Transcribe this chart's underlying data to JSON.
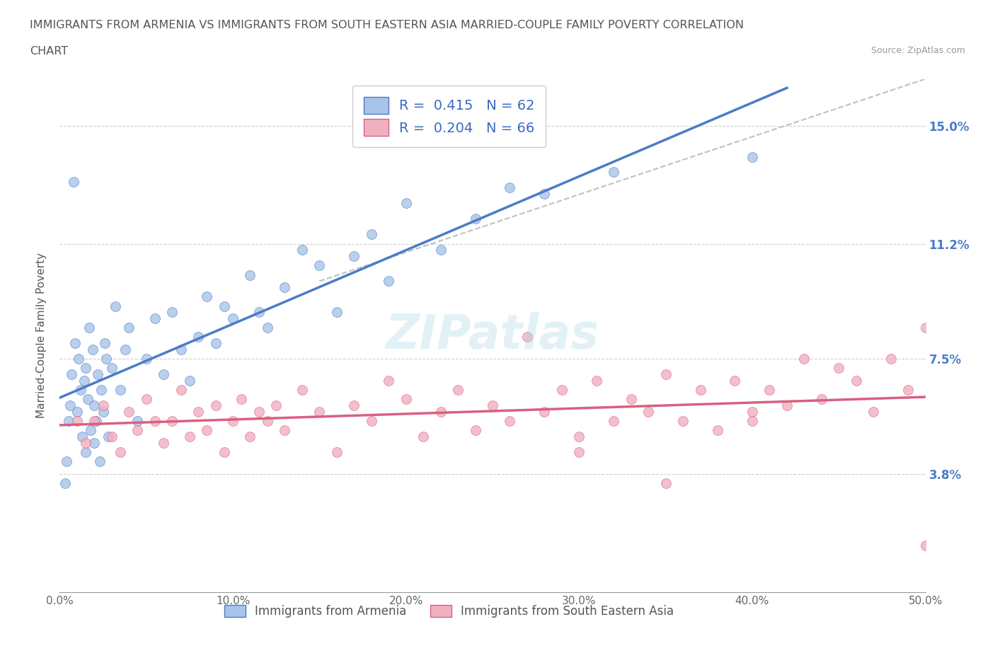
{
  "title_line1": "IMMIGRANTS FROM ARMENIA VS IMMIGRANTS FROM SOUTH EASTERN ASIA MARRIED-COUPLE FAMILY POVERTY CORRELATION",
  "title_line2": "CHART",
  "source": "Source: ZipAtlas.com",
  "ylabel": "Married-Couple Family Poverty",
  "xlim": [
    0.0,
    50.0
  ],
  "ylim": [
    0.0,
    16.5
  ],
  "yticks": [
    3.8,
    7.5,
    11.2,
    15.0
  ],
  "xticks": [
    0.0,
    10.0,
    20.0,
    30.0,
    40.0,
    50.0
  ],
  "color_armenia": "#a8c4e8",
  "color_sea": "#f0b0c0",
  "color_line_armenia": "#4a7cc7",
  "color_line_sea": "#d96080",
  "color_trend_dashed": "#c0c0c0",
  "R_armenia": 0.415,
  "N_armenia": 62,
  "R_sea": 0.204,
  "N_sea": 66,
  "armenia_x": [
    0.3,
    0.4,
    0.5,
    0.6,
    0.7,
    0.8,
    0.9,
    1.0,
    1.1,
    1.2,
    1.3,
    1.4,
    1.5,
    1.5,
    1.6,
    1.7,
    1.8,
    1.9,
    2.0,
    2.0,
    2.1,
    2.2,
    2.3,
    2.4,
    2.5,
    2.6,
    2.7,
    2.8,
    3.0,
    3.2,
    3.5,
    3.8,
    4.0,
    4.5,
    5.0,
    5.5,
    6.0,
    6.5,
    7.0,
    7.5,
    8.0,
    8.5,
    9.0,
    9.5,
    10.0,
    11.0,
    11.5,
    12.0,
    13.0,
    14.0,
    15.0,
    16.0,
    17.0,
    18.0,
    19.0,
    20.0,
    22.0,
    24.0,
    26.0,
    28.0,
    32.0,
    40.0
  ],
  "armenia_y": [
    3.5,
    4.2,
    5.5,
    6.0,
    7.0,
    13.2,
    8.0,
    5.8,
    7.5,
    6.5,
    5.0,
    6.8,
    4.5,
    7.2,
    6.2,
    8.5,
    5.2,
    7.8,
    6.0,
    4.8,
    5.5,
    7.0,
    4.2,
    6.5,
    5.8,
    8.0,
    7.5,
    5.0,
    7.2,
    9.2,
    6.5,
    7.8,
    8.5,
    5.5,
    7.5,
    8.8,
    7.0,
    9.0,
    7.8,
    6.8,
    8.2,
    9.5,
    8.0,
    9.2,
    8.8,
    10.2,
    9.0,
    8.5,
    9.8,
    11.0,
    10.5,
    9.0,
    10.8,
    11.5,
    10.0,
    12.5,
    11.0,
    12.0,
    13.0,
    12.8,
    13.5,
    14.0
  ],
  "sea_x": [
    1.0,
    1.5,
    2.0,
    2.5,
    3.0,
    3.5,
    4.0,
    4.5,
    5.0,
    5.5,
    6.0,
    6.5,
    7.0,
    7.5,
    8.0,
    8.5,
    9.0,
    9.5,
    10.0,
    10.5,
    11.0,
    11.5,
    12.0,
    12.5,
    13.0,
    14.0,
    15.0,
    16.0,
    17.0,
    18.0,
    19.0,
    20.0,
    21.0,
    22.0,
    23.0,
    24.0,
    25.0,
    26.0,
    27.0,
    28.0,
    29.0,
    30.0,
    31.0,
    32.0,
    33.0,
    34.0,
    35.0,
    36.0,
    37.0,
    38.0,
    39.0,
    40.0,
    41.0,
    42.0,
    43.0,
    44.0,
    45.0,
    46.0,
    47.0,
    48.0,
    49.0,
    50.0,
    30.0,
    35.0,
    40.0,
    50.0
  ],
  "sea_y": [
    5.5,
    4.8,
    5.5,
    6.0,
    5.0,
    4.5,
    5.8,
    5.2,
    6.2,
    5.5,
    4.8,
    5.5,
    6.5,
    5.0,
    5.8,
    5.2,
    6.0,
    4.5,
    5.5,
    6.2,
    5.0,
    5.8,
    5.5,
    6.0,
    5.2,
    6.5,
    5.8,
    4.5,
    6.0,
    5.5,
    6.8,
    6.2,
    5.0,
    5.8,
    6.5,
    5.2,
    6.0,
    5.5,
    8.2,
    5.8,
    6.5,
    5.0,
    6.8,
    5.5,
    6.2,
    5.8,
    7.0,
    5.5,
    6.5,
    5.2,
    6.8,
    5.8,
    6.5,
    6.0,
    7.5,
    6.2,
    7.2,
    6.8,
    5.8,
    7.5,
    6.5,
    8.5,
    4.5,
    3.5,
    5.5,
    1.5
  ]
}
